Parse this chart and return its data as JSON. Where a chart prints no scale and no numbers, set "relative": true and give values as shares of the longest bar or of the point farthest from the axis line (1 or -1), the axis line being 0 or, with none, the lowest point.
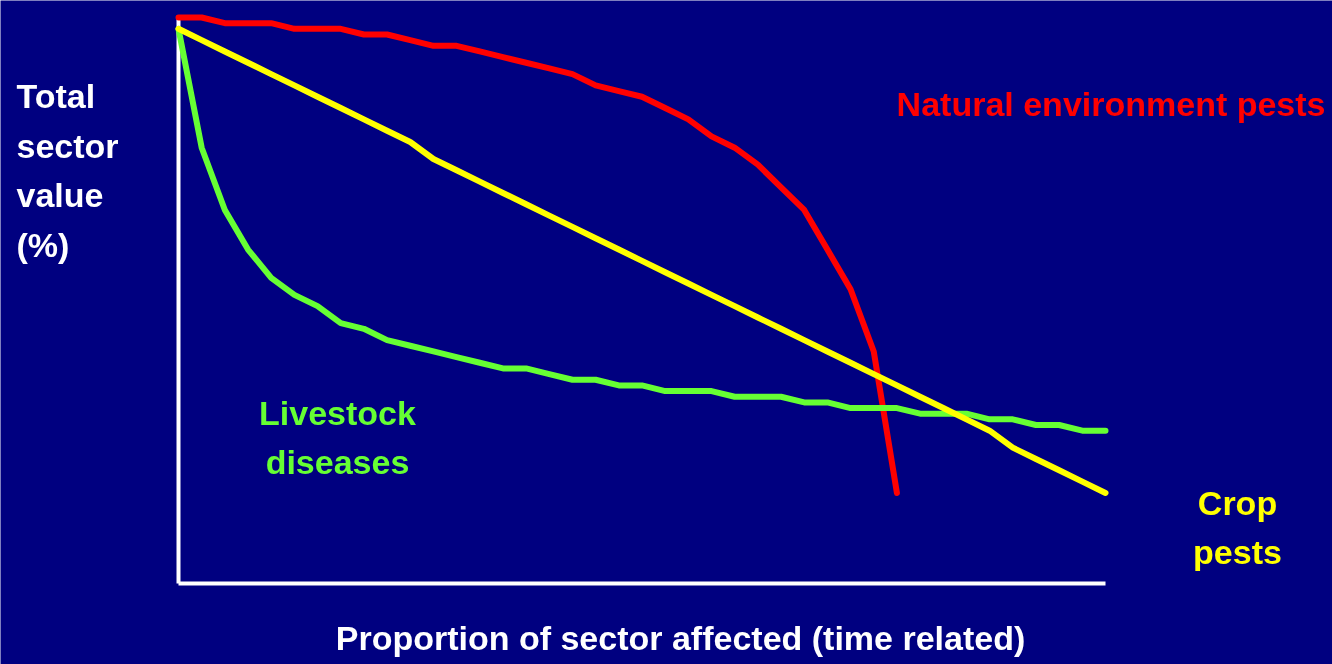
{
  "chart_data": {
    "type": "line",
    "relative": true,
    "xlabel": "Proportion of sector affected (time related)",
    "ylabel": "Total sector value (%)",
    "categories": [
      null,
      null,
      null,
      null,
      null,
      null,
      null,
      null,
      null,
      null,
      null,
      null,
      null,
      null,
      null,
      null,
      null,
      null,
      null,
      null,
      null,
      null,
      null,
      null,
      null,
      null,
      null,
      null,
      null,
      null,
      null,
      null,
      null,
      null,
      null,
      null,
      null,
      null,
      null,
      null,
      null
    ],
    "series": [
      {
        "name": "Natural environment pests",
        "color": "#ff0000",
        "values": [
          1.0,
          1.0,
          0.99,
          0.99,
          0.99,
          0.98,
          0.98,
          0.98,
          0.97,
          0.97,
          0.96,
          0.95,
          0.95,
          0.94,
          0.93,
          0.92,
          0.91,
          0.9,
          0.88,
          0.87,
          0.86,
          0.84,
          0.82,
          0.79,
          0.77,
          0.74,
          0.7,
          0.66,
          0.59,
          0.52,
          0.41,
          0.16,
          null,
          null,
          null,
          null,
          null,
          null,
          null,
          null,
          null
        ]
      },
      {
        "name": "Livestock diseases",
        "color": "#66ff33",
        "values": [
          0.98,
          0.77,
          0.66,
          0.59,
          0.54,
          0.51,
          0.49,
          0.46,
          0.45,
          0.43,
          0.42,
          0.41,
          0.4,
          0.39,
          0.38,
          0.38,
          0.37,
          0.36,
          0.36,
          0.35,
          0.35,
          0.34,
          0.34,
          0.34,
          0.33,
          0.33,
          0.33,
          0.32,
          0.32,
          0.31,
          0.31,
          0.31,
          0.3,
          0.3,
          0.3,
          0.29,
          0.29,
          0.28,
          0.28,
          0.27,
          0.27
        ]
      },
      {
        "name": "Crop pests",
        "color": "#ffff00",
        "values": [
          0.98,
          0.96,
          0.94,
          0.92,
          0.9,
          0.88,
          0.86,
          0.84,
          0.82,
          0.8,
          0.78,
          0.75,
          0.73,
          0.71,
          0.69,
          0.67,
          0.65,
          0.63,
          0.61,
          0.59,
          0.57,
          0.55,
          0.53,
          0.51,
          0.49,
          0.47,
          0.45,
          0.43,
          0.41,
          0.39,
          0.37,
          0.35,
          0.33,
          0.31,
          0.29,
          0.27,
          0.24,
          0.22,
          0.2,
          0.18,
          0.16
        ]
      }
    ],
    "marker": "none",
    "line_style": "solid"
  }
}
